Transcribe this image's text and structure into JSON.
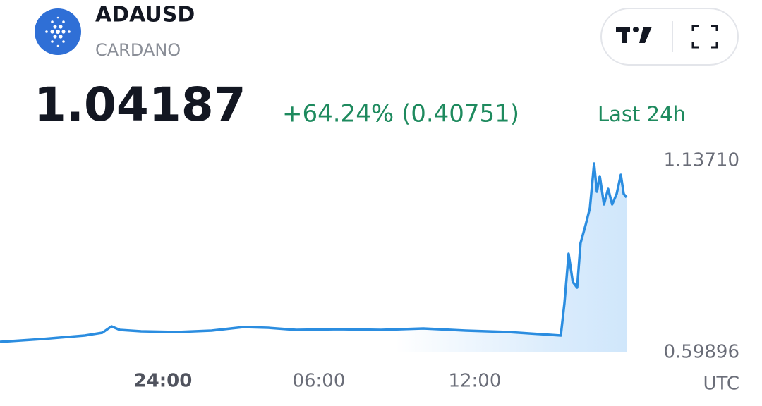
{
  "header": {
    "symbol": "ADAUSD",
    "name": "CARDANO",
    "price": "1.04187",
    "change": "+64.24% (0.40751)",
    "period": "Last 24h"
  },
  "chart_data": {
    "type": "area",
    "color": "#2b8de0",
    "x": [
      -6.27,
      -4.64,
      -3.01,
      -2.33,
      -1.98,
      -1.66,
      -0.84,
      0.52,
      1.87,
      3.1,
      4.05,
      5.13,
      6.76,
      8.39,
      10.02,
      11.65,
      13.28,
      15.31,
      15.45,
      15.61,
      15.77,
      15.94,
      16.07,
      16.26,
      16.43,
      16.59,
      16.7,
      16.81,
      16.97,
      17.13,
      17.29,
      17.46,
      17.62,
      17.73,
      17.84
    ],
    "values": [
      0.6286,
      0.6366,
      0.6464,
      0.6544,
      0.6722,
      0.6623,
      0.6583,
      0.6563,
      0.6603,
      0.6702,
      0.6682,
      0.6623,
      0.6643,
      0.6623,
      0.6663,
      0.6603,
      0.6563,
      0.6464,
      0.7375,
      0.876,
      0.7968,
      0.781,
      0.9056,
      0.9551,
      1.0046,
      1.1292,
      1.0501,
      1.0936,
      1.0145,
      1.0579,
      1.0144,
      1.044,
      1.0975,
      1.044,
      1.0342
    ],
    "xlim": [
      -6.27,
      18.03
    ],
    "xticks": [
      {
        "value": 0,
        "label": "24:00"
      },
      {
        "value": 6,
        "label": "06:00"
      },
      {
        "value": 12,
        "label": "12:00"
      }
    ],
    "ylim": [
      0.59896,
      1.1371
    ],
    "yticks": [
      0.59896,
      {
        "value": 1.1371,
        "label": "1.13710"
      }
    ],
    "x_label": "UTC"
  }
}
